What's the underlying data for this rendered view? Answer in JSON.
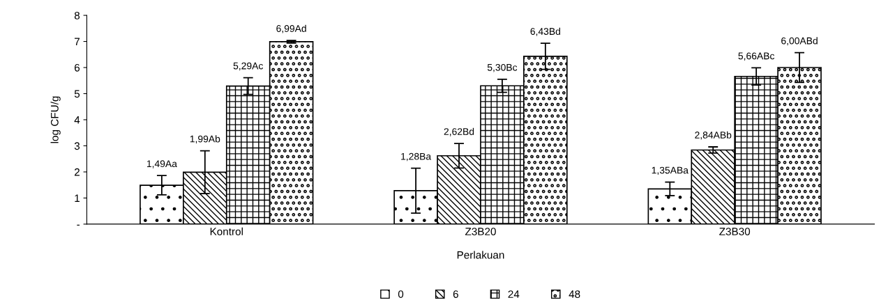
{
  "chart_data": {
    "type": "bar",
    "xlabel": "Perlakuan",
    "ylabel": "log CFU/g",
    "categories": [
      "Kontrol",
      "Z3B20",
      "Z3B30"
    ],
    "series": [
      {
        "name": "0",
        "color": "#000000",
        "values": [
          1.49,
          1.28,
          1.35
        ],
        "errors": [
          0.37,
          0.86,
          0.26
        ],
        "value_labels": [
          "1,49Aa",
          "1,28Ba",
          "1,35ABa"
        ]
      },
      {
        "name": "6",
        "color": "#000000",
        "values": [
          1.99,
          2.62,
          2.84
        ],
        "errors": [
          0.82,
          0.47,
          0.12
        ],
        "value_labels": [
          "1,99Ab",
          "2,62Bd",
          "2,84ABb"
        ]
      },
      {
        "name": "24",
        "color": "#000000",
        "values": [
          5.29,
          5.3,
          5.66
        ],
        "errors": [
          0.32,
          0.25,
          0.33
        ],
        "value_labels": [
          "5,29Ac",
          "5,30Bc",
          "5,66ABc"
        ]
      },
      {
        "name": "48",
        "color": "#000000",
        "values": [
          6.99,
          6.43,
          6.0
        ],
        "errors": [
          0.05,
          0.5,
          0.57
        ],
        "value_labels": [
          "6,99Ad",
          "6,43Bd",
          "6,00ABd"
        ]
      }
    ],
    "ylim": [
      0,
      8
    ],
    "yticks": [
      {
        "value": 0,
        "label": "-"
      },
      1,
      2,
      3,
      4,
      5,
      6,
      7,
      8
    ],
    "grid": false,
    "legend": "bottom"
  }
}
